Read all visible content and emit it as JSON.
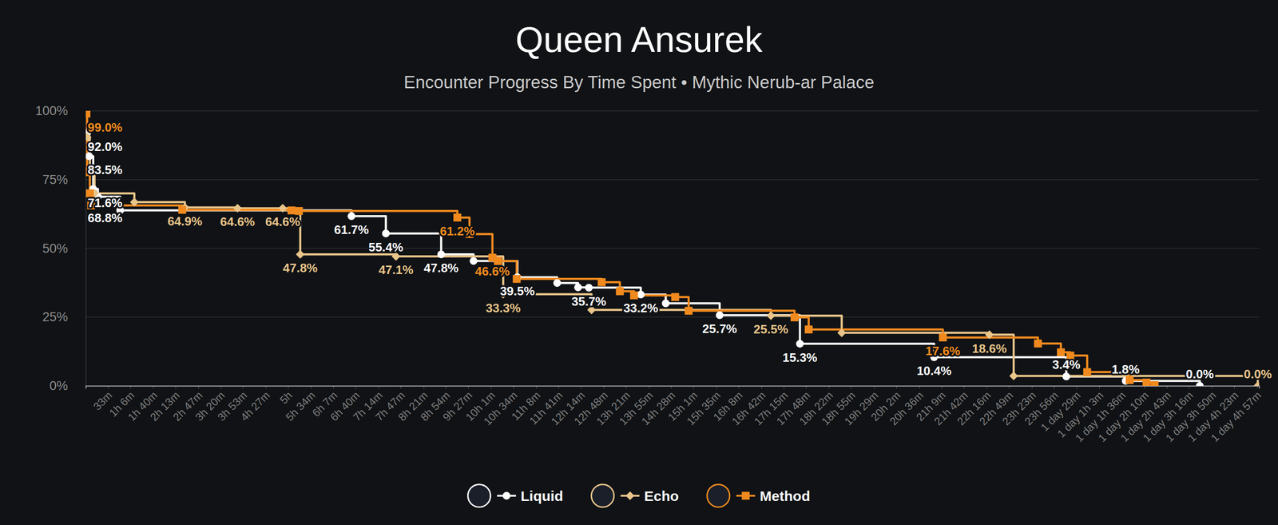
{
  "chart_data": {
    "type": "line",
    "title": "Queen Ansurek",
    "subtitle": "Encounter Progress By Time Spent • Mythic Nerub-ar Palace",
    "xlim": [
      0,
      1740
    ],
    "xticks": [
      {
        "value": 33,
        "label": "33m"
      },
      {
        "value": 66,
        "label": "1h 6m"
      },
      {
        "value": 100,
        "label": "1h 40m"
      },
      {
        "value": 133,
        "label": "2h 13m"
      },
      {
        "value": 167,
        "label": "2h 47m"
      },
      {
        "value": 200,
        "label": "3h 20m"
      },
      {
        "value": 233,
        "label": "3h 53m"
      },
      {
        "value": 267,
        "label": "4h 27m"
      },
      {
        "value": 300,
        "label": "5h"
      },
      {
        "value": 334,
        "label": "5h 34m"
      },
      {
        "value": 367,
        "label": "6h 7m"
      },
      {
        "value": 400,
        "label": "6h 40m"
      },
      {
        "value": 434,
        "label": "7h 14m"
      },
      {
        "value": 467,
        "label": "7h 47m"
      },
      {
        "value": 501,
        "label": "8h 21m"
      },
      {
        "value": 534,
        "label": "8h 54m"
      },
      {
        "value": 567,
        "label": "9h 27m"
      },
      {
        "value": 601,
        "label": "10h 1m"
      },
      {
        "value": 634,
        "label": "10h 34m"
      },
      {
        "value": 668,
        "label": "11h 8m"
      },
      {
        "value": 701,
        "label": "11h 41m"
      },
      {
        "value": 734,
        "label": "12h 14m"
      },
      {
        "value": 768,
        "label": "12h 48m"
      },
      {
        "value": 801,
        "label": "13h 21m"
      },
      {
        "value": 835,
        "label": "13h 55m"
      },
      {
        "value": 868,
        "label": "14h 28m"
      },
      {
        "value": 901,
        "label": "15h 1m"
      },
      {
        "value": 935,
        "label": "15h 35m"
      },
      {
        "value": 968,
        "label": "16h 8m"
      },
      {
        "value": 1002,
        "label": "16h 42m"
      },
      {
        "value": 1035,
        "label": "17h 15m"
      },
      {
        "value": 1068,
        "label": "17h 48m"
      },
      {
        "value": 1102,
        "label": "18h 22m"
      },
      {
        "value": 1135,
        "label": "18h 55m"
      },
      {
        "value": 1169,
        "label": "19h 29m"
      },
      {
        "value": 1202,
        "label": "20h 2m"
      },
      {
        "value": 1236,
        "label": "20h 36m"
      },
      {
        "value": 1269,
        "label": "21h 9m"
      },
      {
        "value": 1302,
        "label": "21h 42m"
      },
      {
        "value": 1336,
        "label": "22h 16m"
      },
      {
        "value": 1369,
        "label": "22h 49m"
      },
      {
        "value": 1403,
        "label": "23h 23m"
      },
      {
        "value": 1436,
        "label": "23h 56m"
      },
      {
        "value": 1469,
        "label": "1 day 29m"
      },
      {
        "value": 1503,
        "label": "1 day 1h 3m"
      },
      {
        "value": 1536,
        "label": "1 day 1h 36m"
      },
      {
        "value": 1570,
        "label": "1 day 2h 10m"
      },
      {
        "value": 1603,
        "label": "1 day 2h 43m"
      },
      {
        "value": 1636,
        "label": "1 day 3h 16m"
      },
      {
        "value": 1670,
        "label": "1 day 3h 50m"
      },
      {
        "value": 1703,
        "label": "1 day 4h 23m"
      },
      {
        "value": 1737,
        "label": "1 day 4h 57m"
      }
    ],
    "ylim": [
      0,
      100
    ],
    "yticks": [
      {
        "value": 0,
        "label": "0%"
      },
      {
        "value": 25,
        "label": "25%"
      },
      {
        "value": 50,
        "label": "50%"
      },
      {
        "value": 75,
        "label": "75%"
      },
      {
        "value": 100,
        "label": "100%"
      }
    ],
    "grid": true,
    "legend": "bottom",
    "data_labels": true,
    "line_style": "step",
    "series": [
      {
        "name": "Liquid",
        "color": "#ffffff",
        "marker": "circle",
        "x": [
          2,
          5,
          11,
          18,
          51,
          394,
          445,
          527,
          575,
          640,
          699,
          730,
          746,
          823,
          860,
          940,
          1059,
          1258,
          1454,
          1542,
          1652
        ],
        "values": [
          92.0,
          83.5,
          71.6,
          68.8,
          63.8,
          61.7,
          55.4,
          47.8,
          45.4,
          39.5,
          37.4,
          35.8,
          35.7,
          33.2,
          30.0,
          25.7,
          15.3,
          10.4,
          3.4,
          1.8,
          0.0
        ],
        "value_labels": [
          "92.0%",
          "83.5%",
          "71.6%",
          "68.8%",
          null,
          "61.7%",
          "55.4%",
          "47.8%",
          null,
          "39.5%",
          null,
          null,
          "35.7%",
          "33.2%",
          null,
          "25.7%",
          "15.3%",
          "10.4%",
          "3.4%",
          "1.8%",
          "0.0%"
        ]
      },
      {
        "name": "Echo",
        "color": "#e9c58a",
        "marker": "diamond",
        "x": [
          2,
          6,
          13,
          72,
          147,
          225,
          292,
          318,
          460,
          619,
          750,
          1016,
          1121,
          1340,
          1376,
          1738
        ],
        "values": [
          90.5,
          79.0,
          70.0,
          66.8,
          64.9,
          64.6,
          64.6,
          47.8,
          47.1,
          33.3,
          27.6,
          25.5,
          19.3,
          18.6,
          3.6,
          0.0
        ],
        "value_labels": [
          null,
          null,
          null,
          null,
          "64.9%",
          "64.6%",
          "64.6%",
          "47.8%",
          "47.1%",
          "33.3%",
          null,
          "25.5%",
          null,
          "18.6%",
          null,
          "0.0%"
        ]
      },
      {
        "name": "Method",
        "color": "#f08a1e",
        "marker": "square",
        "x": [
          1,
          2,
          6,
          8,
          143,
          305,
          316,
          551,
          569,
          603,
          611,
          639,
          765,
          792,
          813,
          874,
          894,
          1051,
          1072,
          1271,
          1412,
          1446,
          1460,
          1485,
          1548,
          1573,
          1585
        ],
        "values": [
          99.0,
          77.7,
          70.0,
          65.6,
          64.0,
          63.8,
          63.6,
          61.2,
          55.2,
          46.6,
          45.4,
          38.9,
          37.7,
          34.4,
          32.9,
          32.3,
          27.3,
          24.9,
          20.5,
          17.6,
          15.4,
          12.2,
          11.0,
          5.0,
          2.1,
          1.2,
          0.3
        ],
        "value_labels": [
          "99.0%",
          null,
          null,
          null,
          null,
          null,
          null,
          "61.2%",
          null,
          "46.6%",
          null,
          null,
          null,
          null,
          null,
          null,
          null,
          null,
          null,
          "17.6%",
          null,
          null,
          null,
          null,
          null,
          null,
          null
        ]
      }
    ]
  }
}
